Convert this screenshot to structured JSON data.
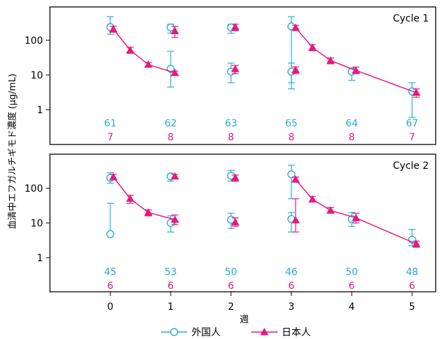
{
  "chart_data": {
    "type": "line",
    "ylabel": "血清中エフガルチギモド濃度 (μg/mL)",
    "xlabel": "週",
    "x_ticks": [
      "0",
      "1",
      "2",
      "3",
      "4",
      "5"
    ],
    "y_ticks": [
      "1",
      "10",
      "100"
    ],
    "xlim": [
      -1,
      5.3
    ],
    "ylim": [
      0.3,
      700
    ],
    "y_scale": "log",
    "grid": false,
    "colors": {
      "foreign": "#29a9e0",
      "japanese": "#e5197f"
    },
    "legend": {
      "position": "bottom-center",
      "items": [
        {
          "name": "外国人",
          "marker": "open-circle",
          "color": "#29a9e0"
        },
        {
          "name": "日本人",
          "marker": "filled-triangle",
          "color": "#e5197f"
        }
      ]
    },
    "panels": [
      {
        "label": "Cycle 1",
        "series": [
          {
            "name": "外国人",
            "points": [
              {
                "x": 0,
                "y": 240,
                "lo": 150,
                "hi": 480
              },
              {
                "x": 1,
                "y": 15,
                "lo": 4.5,
                "hi": 48
              },
              {
                "x": 1,
                "y": 235,
                "lo": 160,
                "hi": 290
              },
              {
                "x": 2,
                "y": 12.5,
                "lo": 6,
                "hi": 22
              },
              {
                "x": 2,
                "y": 235,
                "lo": 160,
                "hi": 290
              },
              {
                "x": 3,
                "y": 12.5,
                "lo": 6,
                "hi": 22
              },
              {
                "x": 3,
                "y": 250,
                "lo": 4,
                "hi": 480
              },
              {
                "x": 4,
                "y": 12.5,
                "lo": 7,
                "hi": 16
              },
              {
                "x": 5,
                "y": 3.4,
                "lo": 0.6,
                "hi": 6
              }
            ],
            "n": [
              {
                "x": 0,
                "label": "61"
              },
              {
                "x": 1,
                "label": "62"
              },
              {
                "x": 2,
                "label": "63"
              },
              {
                "x": 3,
                "label": "65"
              },
              {
                "x": 4,
                "label": "64"
              },
              {
                "x": 5,
                "label": "67"
              }
            ]
          },
          {
            "name": "日本人",
            "segments": [
              [
                {
                  "x": 0.05,
                  "y": 210,
                  "lo": 170,
                  "hi": 255
                },
                {
                  "x": 0.33,
                  "y": 52,
                  "lo": 42,
                  "hi": 63
                },
                {
                  "x": 0.63,
                  "y": 20,
                  "lo": 17,
                  "hi": 23
                },
                {
                  "x": 1.07,
                  "y": 11.5,
                  "lo": 10,
                  "hi": 13
                }
              ],
              [
                {
                  "x": 3.07,
                  "y": 230,
                  "lo": 190,
                  "hi": 270
                },
                {
                  "x": 3.35,
                  "y": 62,
                  "lo": 50,
                  "hi": 75
                },
                {
                  "x": 3.65,
                  "y": 26,
                  "lo": 21,
                  "hi": 31
                },
                {
                  "x": 4.07,
                  "y": 13.5,
                  "lo": 11,
                  "hi": 17
                },
                {
                  "x": 5.07,
                  "y": 3.1,
                  "lo": 2.3,
                  "hi": 4
                }
              ]
            ],
            "points": [
              {
                "x": 1.07,
                "y": 185,
                "lo": 120,
                "hi": 250
              },
              {
                "x": 2.07,
                "y": 15,
                "lo": 11,
                "hi": 19
              },
              {
                "x": 2.07,
                "y": 240,
                "lo": 190,
                "hi": 290
              },
              {
                "x": 3.07,
                "y": 14,
                "lo": 11,
                "hi": 17
              }
            ],
            "n": [
              {
                "x": 0,
                "label": "7"
              },
              {
                "x": 1,
                "label": "8"
              },
              {
                "x": 2,
                "label": "8"
              },
              {
                "x": 3,
                "label": "8"
              },
              {
                "x": 4,
                "label": "8"
              },
              {
                "x": 5,
                "label": "7"
              }
            ]
          }
        ]
      },
      {
        "label": "Cycle 2",
        "series": [
          {
            "name": "外国人",
            "points": [
              {
                "x": 0,
                "y": 200,
                "lo": 140,
                "hi": 280
              },
              {
                "x": 0,
                "y": 4.8,
                "lo": 4.8,
                "hi": 37
              },
              {
                "x": 1,
                "y": 10,
                "lo": 5.5,
                "hi": 16
              },
              {
                "x": 1,
                "y": 220,
                "lo": 160,
                "hi": 260
              },
              {
                "x": 2,
                "y": 12.5,
                "lo": 7,
                "hi": 19
              },
              {
                "x": 2,
                "y": 230,
                "lo": 160,
                "hi": 330
              },
              {
                "x": 3,
                "y": 13,
                "lo": 5.5,
                "hi": 20
              },
              {
                "x": 3,
                "y": 250,
                "lo": 50,
                "hi": 460
              },
              {
                "x": 4,
                "y": 13,
                "lo": 8,
                "hi": 20
              },
              {
                "x": 5,
                "y": 3.3,
                "lo": 2.2,
                "hi": 6.5
              }
            ],
            "n": [
              {
                "x": 0,
                "label": "45"
              },
              {
                "x": 1,
                "label": "53"
              },
              {
                "x": 2,
                "label": "50"
              },
              {
                "x": 3,
                "label": "46"
              },
              {
                "x": 4,
                "label": "50"
              },
              {
                "x": 5,
                "label": "48"
              }
            ]
          },
          {
            "name": "日本人",
            "segments": [
              [
                {
                  "x": 0.05,
                  "y": 210,
                  "lo": 175,
                  "hi": 250
                },
                {
                  "x": 0.33,
                  "y": 50,
                  "lo": 37,
                  "hi": 63
                },
                {
                  "x": 0.63,
                  "y": 20,
                  "lo": 16,
                  "hi": 24
                },
                {
                  "x": 1.07,
                  "y": 12.5,
                  "lo": 9,
                  "hi": 17
                }
              ],
              [
                {
                  "x": 3.07,
                  "y": 180,
                  "lo": 150,
                  "hi": 210
                },
                {
                  "x": 3.35,
                  "y": 48,
                  "lo": 40,
                  "hi": 58
                },
                {
                  "x": 3.65,
                  "y": 23,
                  "lo": 19,
                  "hi": 28
                },
                {
                  "x": 4.07,
                  "y": 14,
                  "lo": 10,
                  "hi": 19
                },
                {
                  "x": 5.07,
                  "y": 2.5,
                  "lo": 2,
                  "hi": 3
                }
              ]
            ],
            "points": [
              {
                "x": 1.07,
                "y": 220,
                "lo": 190,
                "hi": 250
              },
              {
                "x": 2.07,
                "y": 10.5,
                "lo": 8,
                "hi": 14
              },
              {
                "x": 2.07,
                "y": 200,
                "lo": 160,
                "hi": 240
              },
              {
                "x": 3.07,
                "y": 12,
                "lo": 5.5,
                "hi": 50
              }
            ],
            "n": [
              {
                "x": 0,
                "label": "6"
              },
              {
                "x": 1,
                "label": "6"
              },
              {
                "x": 2,
                "label": "6"
              },
              {
                "x": 3,
                "label": "6"
              },
              {
                "x": 4,
                "label": "6"
              },
              {
                "x": 5,
                "label": "6"
              }
            ]
          }
        ]
      }
    ]
  }
}
